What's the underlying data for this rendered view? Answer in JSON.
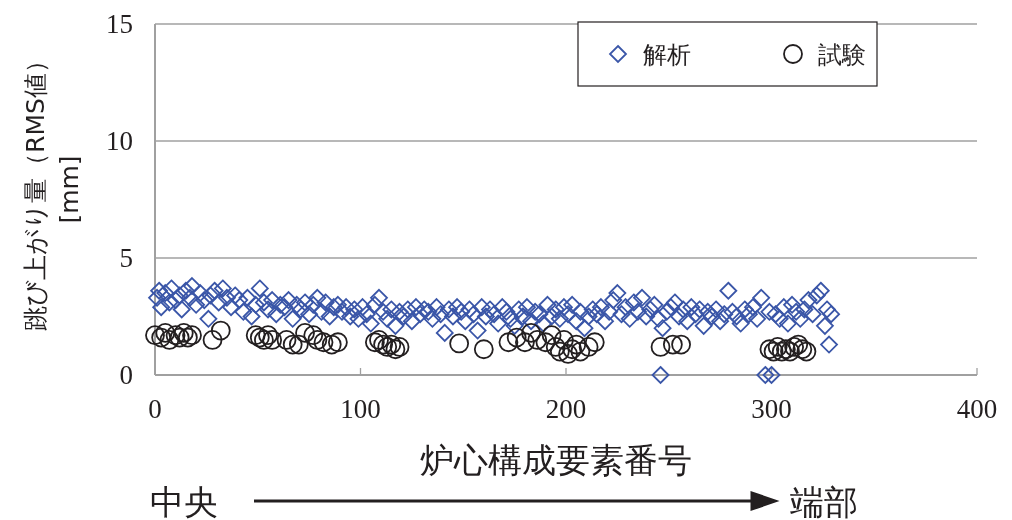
{
  "chart_data": {
    "type": "scatter",
    "xlabel": "炉心構成要素番号",
    "ylabel": "跳び上がり量（RMS値） [mm]",
    "annotations": [
      "中央",
      "端部"
    ],
    "xlim": [
      0,
      400
    ],
    "xticks": [
      0,
      100,
      200,
      300,
      400
    ],
    "ylim": [
      0,
      15
    ],
    "yticks": [
      0,
      5,
      10,
      15
    ],
    "grid": "y",
    "legend": "top right",
    "series": [
      {
        "name": "解析",
        "color": "#3a56a8",
        "marker": "diamond",
        "x": [
          1,
          2,
          3,
          5,
          7,
          8,
          10,
          12,
          13,
          15,
          17,
          18,
          20,
          22,
          24,
          26,
          27,
          29,
          31,
          33,
          35,
          37,
          39,
          41,
          43,
          45,
          47,
          49,
          51,
          53,
          55,
          57,
          59,
          61,
          63,
          65,
          67,
          69,
          71,
          73,
          75,
          77,
          79,
          81,
          83,
          85,
          87,
          89,
          91,
          93,
          95,
          97,
          99,
          101,
          103,
          105,
          107,
          109,
          111,
          113,
          115,
          117,
          119,
          121,
          123,
          125,
          127,
          129,
          131,
          133,
          135,
          137,
          139,
          141,
          143,
          145,
          147,
          149,
          151,
          153,
          155,
          157,
          159,
          161,
          163,
          165,
          167,
          169,
          171,
          173,
          175,
          177,
          179,
          181,
          183,
          185,
          187,
          189,
          191,
          193,
          195,
          197,
          199,
          201,
          203,
          205,
          207,
          209,
          211,
          213,
          215,
          217,
          219,
          221,
          223,
          225,
          227,
          229,
          231,
          233,
          235,
          237,
          239,
          241,
          243,
          245,
          246,
          247,
          249,
          251,
          253,
          255,
          257,
          259,
          261,
          263,
          265,
          267,
          269,
          271,
          273,
          275,
          277,
          279,
          281,
          283,
          285,
          287,
          289,
          291,
          293,
          295,
          297,
          299,
          300,
          302,
          304,
          306,
          308,
          310,
          312,
          314,
          316,
          318,
          320,
          322,
          324,
          326,
          327,
          328,
          329
        ],
        "values": [
          3.3,
          3.6,
          2.9,
          3.5,
          3.1,
          3.7,
          3.2,
          3.4,
          2.8,
          3.6,
          3.3,
          3.8,
          3.0,
          3.5,
          3.2,
          2.4,
          3.4,
          3.6,
          3.1,
          3.7,
          3.3,
          2.9,
          3.4,
          3.2,
          2.7,
          3.3,
          2.5,
          3.0,
          3.7,
          3.1,
          2.8,
          3.2,
          2.6,
          3.0,
          2.9,
          3.2,
          2.4,
          3.0,
          2.8,
          3.1,
          2.6,
          3.0,
          3.3,
          2.7,
          3.1,
          2.5,
          2.9,
          3.0,
          2.7,
          2.9,
          2.5,
          2.8,
          2.4,
          2.9,
          2.6,
          2.2,
          3.0,
          3.3,
          2.7,
          2.4,
          2.8,
          2.1,
          2.7,
          2.5,
          2.8,
          2.3,
          2.9,
          2.6,
          2.8,
          2.7,
          2.4,
          2.9,
          2.6,
          1.8,
          2.8,
          2.5,
          2.9,
          2.7,
          2.3,
          2.8,
          2.6,
          1.9,
          2.9,
          2.5,
          2.8,
          2.6,
          2.2,
          2.9,
          2.7,
          2.4,
          2.1,
          2.8,
          2.5,
          2.9,
          2.3,
          2.7,
          2.6,
          2.2,
          3.0,
          2.5,
          2.8,
          2.4,
          2.9,
          2.6,
          3.0,
          2.3,
          2.7,
          2.0,
          2.5,
          2.8,
          2.6,
          2.9,
          2.3,
          2.7,
          3.2,
          3.5,
          2.6,
          2.9,
          2.4,
          3.1,
          2.7,
          3.3,
          2.5,
          2.8,
          3.0,
          2.4,
          0,
          2.0,
          2.7,
          2.9,
          3.1,
          2.5,
          2.8,
          2.3,
          2.9,
          2.6,
          2.8,
          2.1,
          2.7,
          2.5,
          2.8,
          2.3,
          2.6,
          3.6,
          2.7,
          2.5,
          2.2,
          2.8,
          2.6,
          2.9,
          2.4,
          3.3,
          0,
          2.7,
          0,
          2.6,
          2.4,
          2.9,
          2.2,
          3.0,
          2.7,
          2.4,
          2.8,
          3.2,
          2.6,
          3.4,
          3.6,
          2.1,
          2.8,
          1.3,
          2.6
        ]
      },
      {
        "name": "試験",
        "color": "#231f20",
        "marker": "circle",
        "x": [
          0,
          3,
          5,
          7,
          10,
          12,
          14,
          16,
          18,
          28,
          32,
          49,
          51,
          53,
          55,
          57,
          64,
          67,
          70,
          73,
          77,
          79,
          82,
          86,
          89,
          107,
          109,
          111,
          113,
          115,
          117,
          119,
          148,
          160,
          172,
          176,
          180,
          183,
          186,
          190,
          193,
          195,
          197,
          199,
          201,
          203,
          205,
          207,
          211,
          214,
          246,
          252,
          256,
          299,
          301,
          303,
          305,
          307,
          309,
          311,
          313,
          315,
          317
        ],
        "values": [
          1.7,
          1.6,
          1.8,
          1.5,
          1.7,
          1.6,
          1.8,
          1.6,
          1.7,
          1.5,
          1.9,
          1.7,
          1.6,
          1.5,
          1.7,
          1.5,
          1.5,
          1.3,
          1.3,
          1.8,
          1.7,
          1.5,
          1.4,
          1.3,
          1.4,
          1.4,
          1.5,
          1.3,
          1.2,
          1.3,
          1.1,
          1.2,
          1.35,
          1.1,
          1.4,
          1.6,
          1.4,
          1.8,
          1.5,
          1.4,
          1.7,
          1.2,
          1.0,
          1.5,
          0.9,
          1.1,
          1.3,
          1.0,
          1.2,
          1.4,
          1.2,
          1.3,
          1.3,
          1.1,
          1.0,
          1.2,
          1.0,
          1.1,
          1.0,
          1.2,
          1.3,
          1.1,
          1.0
        ]
      }
    ]
  }
}
